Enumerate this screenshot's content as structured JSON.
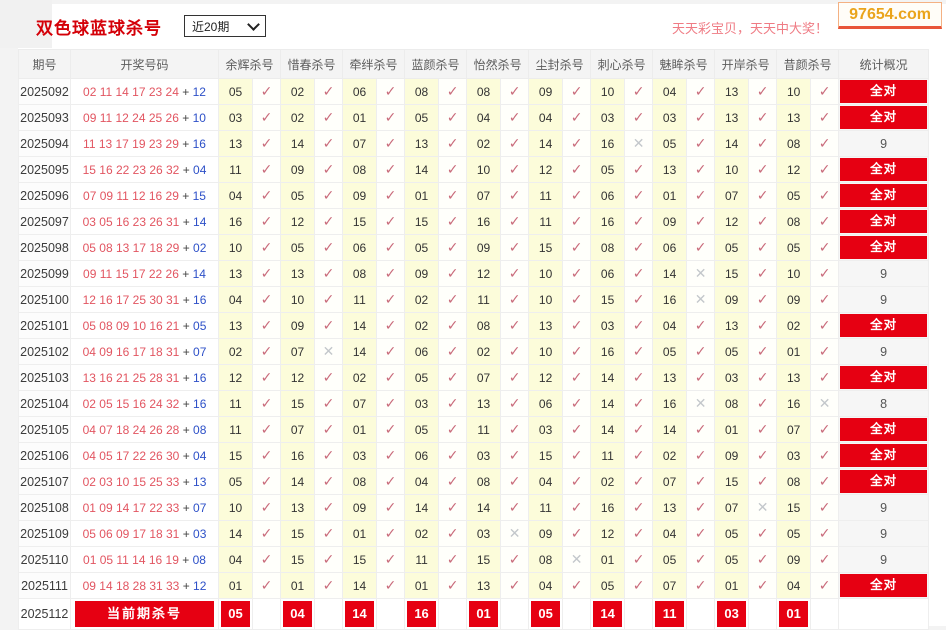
{
  "header": {
    "title": "双色球蓝球杀号",
    "range_value": "近20期",
    "promo": "天天彩宝贝，天天中大奖！",
    "logo": "97654.com"
  },
  "colors": {
    "accent_red": "#e60012",
    "title_red": "#d40008",
    "red_ball": "#e25561",
    "blue_ball": "#2d50c8",
    "check_mark": "#c96b7b",
    "miss_mark": "#c3c7cb",
    "kill_cell_yellow": "#fcfcda",
    "promo_pink": "#ef7b84",
    "logo_gold": "#eaa41c"
  },
  "table": {
    "headers": [
      "期号",
      "开奖号码",
      "余辉杀号",
      "惜春杀号",
      "牵绊杀号",
      "蓝颜杀号",
      "怡然杀号",
      "尘封杀号",
      "刺心杀号",
      "魅眸杀号",
      "开岸杀号",
      "昔颜杀号",
      "统计概况"
    ],
    "perfect_label": "全对",
    "hit_glyph": "✓",
    "miss_glyph": "✕",
    "rows": [
      {
        "period": "2025092",
        "reds": [
          "02",
          "11",
          "14",
          "17",
          "23",
          "24"
        ],
        "blue": "12",
        "kills": [
          "05",
          "02",
          "06",
          "08",
          "08",
          "09",
          "10",
          "04",
          "13",
          "10"
        ],
        "miss": [],
        "stat": "全对"
      },
      {
        "period": "2025093",
        "reds": [
          "09",
          "11",
          "12",
          "24",
          "25",
          "26"
        ],
        "blue": "10",
        "kills": [
          "03",
          "02",
          "01",
          "05",
          "04",
          "04",
          "03",
          "03",
          "13",
          "13"
        ],
        "miss": [],
        "stat": "全对"
      },
      {
        "period": "2025094",
        "reds": [
          "11",
          "13",
          "17",
          "19",
          "23",
          "29"
        ],
        "blue": "16",
        "kills": [
          "13",
          "14",
          "07",
          "13",
          "02",
          "14",
          "16",
          "05",
          "14",
          "08"
        ],
        "miss": [
          6
        ],
        "stat": "9"
      },
      {
        "period": "2025095",
        "reds": [
          "15",
          "16",
          "22",
          "23",
          "26",
          "32"
        ],
        "blue": "04",
        "kills": [
          "11",
          "09",
          "08",
          "14",
          "10",
          "12",
          "05",
          "13",
          "10",
          "12"
        ],
        "miss": [],
        "stat": "全对"
      },
      {
        "period": "2025096",
        "reds": [
          "07",
          "09",
          "11",
          "12",
          "16",
          "29"
        ],
        "blue": "15",
        "kills": [
          "04",
          "05",
          "09",
          "01",
          "07",
          "11",
          "06",
          "01",
          "07",
          "05"
        ],
        "miss": [],
        "stat": "全对"
      },
      {
        "period": "2025097",
        "reds": [
          "03",
          "05",
          "16",
          "23",
          "26",
          "31"
        ],
        "blue": "14",
        "kills": [
          "16",
          "12",
          "15",
          "15",
          "16",
          "11",
          "16",
          "09",
          "12",
          "08"
        ],
        "miss": [],
        "stat": "全对"
      },
      {
        "period": "2025098",
        "reds": [
          "05",
          "08",
          "13",
          "17",
          "18",
          "29"
        ],
        "blue": "02",
        "kills": [
          "10",
          "05",
          "06",
          "05",
          "09",
          "15",
          "08",
          "06",
          "05",
          "05"
        ],
        "miss": [],
        "stat": "全对"
      },
      {
        "period": "2025099",
        "reds": [
          "09",
          "11",
          "15",
          "17",
          "22",
          "26"
        ],
        "blue": "14",
        "kills": [
          "13",
          "13",
          "08",
          "09",
          "12",
          "10",
          "06",
          "14",
          "15",
          "10"
        ],
        "miss": [
          7
        ],
        "stat": "9"
      },
      {
        "period": "2025100",
        "reds": [
          "12",
          "16",
          "17",
          "25",
          "30",
          "31"
        ],
        "blue": "16",
        "kills": [
          "04",
          "10",
          "11",
          "02",
          "11",
          "10",
          "15",
          "16",
          "09",
          "09"
        ],
        "miss": [
          7
        ],
        "stat": "9"
      },
      {
        "period": "2025101",
        "reds": [
          "05",
          "08",
          "09",
          "10",
          "16",
          "21"
        ],
        "blue": "05",
        "kills": [
          "13",
          "09",
          "14",
          "02",
          "08",
          "13",
          "03",
          "04",
          "13",
          "02"
        ],
        "miss": [],
        "stat": "全对"
      },
      {
        "period": "2025102",
        "reds": [
          "04",
          "09",
          "16",
          "17",
          "18",
          "31"
        ],
        "blue": "07",
        "kills": [
          "02",
          "07",
          "14",
          "06",
          "02",
          "10",
          "16",
          "05",
          "05",
          "01"
        ],
        "miss": [
          1
        ],
        "stat": "9"
      },
      {
        "period": "2025103",
        "reds": [
          "13",
          "16",
          "21",
          "25",
          "28",
          "31"
        ],
        "blue": "16",
        "kills": [
          "12",
          "12",
          "02",
          "05",
          "07",
          "12",
          "14",
          "13",
          "03",
          "13"
        ],
        "miss": [],
        "stat": "全对"
      },
      {
        "period": "2025104",
        "reds": [
          "02",
          "05",
          "15",
          "16",
          "24",
          "32"
        ],
        "blue": "16",
        "kills": [
          "11",
          "15",
          "07",
          "03",
          "13",
          "06",
          "14",
          "16",
          "08",
          "16"
        ],
        "miss": [
          7,
          9
        ],
        "stat": "8"
      },
      {
        "period": "2025105",
        "reds": [
          "04",
          "07",
          "18",
          "24",
          "26",
          "28"
        ],
        "blue": "08",
        "kills": [
          "11",
          "07",
          "01",
          "05",
          "11",
          "03",
          "14",
          "14",
          "01",
          "07"
        ],
        "miss": [],
        "stat": "全对"
      },
      {
        "period": "2025106",
        "reds": [
          "04",
          "05",
          "17",
          "22",
          "26",
          "30"
        ],
        "blue": "04",
        "kills": [
          "15",
          "16",
          "03",
          "06",
          "03",
          "15",
          "11",
          "02",
          "09",
          "03"
        ],
        "miss": [],
        "stat": "全对"
      },
      {
        "period": "2025107",
        "reds": [
          "02",
          "03",
          "10",
          "15",
          "25",
          "33"
        ],
        "blue": "13",
        "kills": [
          "05",
          "14",
          "08",
          "04",
          "08",
          "04",
          "02",
          "07",
          "15",
          "08"
        ],
        "miss": [],
        "stat": "全对"
      },
      {
        "period": "2025108",
        "reds": [
          "01",
          "09",
          "14",
          "17",
          "22",
          "33"
        ],
        "blue": "07",
        "kills": [
          "10",
          "13",
          "09",
          "14",
          "14",
          "11",
          "16",
          "13",
          "07",
          "15"
        ],
        "miss": [
          8
        ],
        "stat": "9"
      },
      {
        "period": "2025109",
        "reds": [
          "05",
          "06",
          "09",
          "17",
          "18",
          "31"
        ],
        "blue": "03",
        "kills": [
          "14",
          "15",
          "01",
          "02",
          "03",
          "09",
          "12",
          "04",
          "05",
          "05"
        ],
        "miss": [
          4
        ],
        "stat": "9"
      },
      {
        "period": "2025110",
        "reds": [
          "01",
          "05",
          "11",
          "14",
          "16",
          "19"
        ],
        "blue": "08",
        "kills": [
          "04",
          "15",
          "15",
          "11",
          "15",
          "08",
          "01",
          "05",
          "05",
          "09"
        ],
        "miss": [
          5
        ],
        "stat": "9"
      },
      {
        "period": "2025111",
        "reds": [
          "09",
          "14",
          "18",
          "28",
          "31",
          "33"
        ],
        "blue": "12",
        "kills": [
          "01",
          "01",
          "14",
          "01",
          "13",
          "04",
          "05",
          "07",
          "01",
          "04"
        ],
        "miss": [],
        "stat": "全对"
      }
    ],
    "current": {
      "period": "2025112",
      "label": "当前期杀号",
      "kills": [
        "05",
        "04",
        "14",
        "16",
        "01",
        "05",
        "14",
        "11",
        "03",
        "01"
      ],
      "stat": ""
    }
  }
}
